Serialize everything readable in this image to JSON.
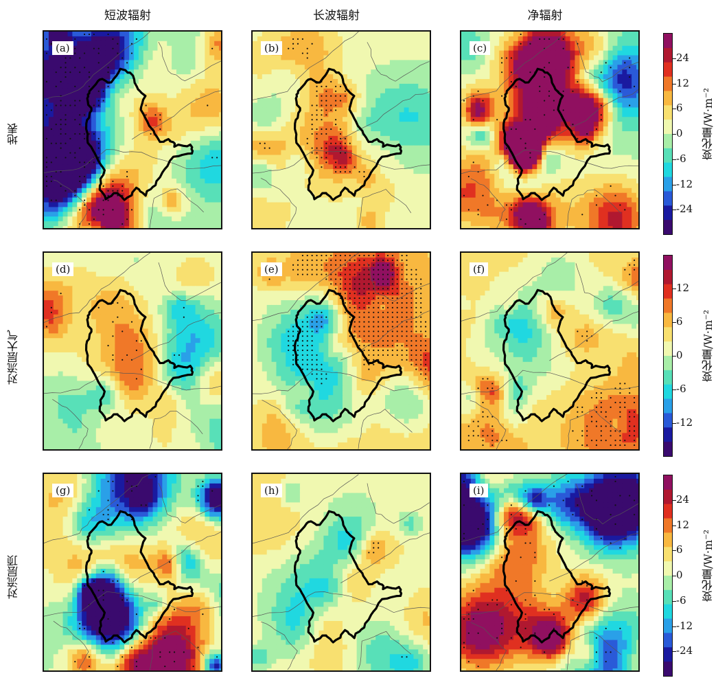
{
  "chart_data": {
    "type": "heatmap",
    "description_columns": [
      "短波辐射",
      "长波辐射",
      "净辐射"
    ],
    "rows": [
      "地表",
      "对流层大气",
      "对流层顶"
    ],
    "column_titles": [
      "短波辐射",
      "长波辐射",
      "净辐射"
    ],
    "row_titles": [
      "地表",
      "对流层大气",
      "对流层顶"
    ],
    "panels": [
      {
        "label": "(a)",
        "row": 0,
        "col": 0,
        "seed": 11,
        "amp": 1.0,
        "bias": 0.0,
        "dots": 0.12,
        "scale": "wide"
      },
      {
        "label": "(b)",
        "row": 0,
        "col": 1,
        "seed": 23,
        "amp": 0.35,
        "bias": 0.05,
        "dots": 0.25,
        "scale": "wide"
      },
      {
        "label": "(c)",
        "row": 0,
        "col": 2,
        "seed": 37,
        "amp": 1.0,
        "bias": 0.0,
        "dots": 0.05,
        "scale": "wide"
      },
      {
        "label": "(d)",
        "row": 1,
        "col": 0,
        "seed": 41,
        "amp": 0.35,
        "bias": 0.05,
        "dots": 0.04,
        "scale": "narrow"
      },
      {
        "label": "(e)",
        "row": 1,
        "col": 1,
        "seed": 53,
        "amp": 0.5,
        "bias": 0.25,
        "dots": 0.45,
        "scale": "narrow"
      },
      {
        "label": "(f)",
        "row": 1,
        "col": 2,
        "seed": 67,
        "amp": 0.45,
        "bias": 0.25,
        "dots": 0.25,
        "scale": "narrow"
      },
      {
        "label": "(g)",
        "row": 2,
        "col": 0,
        "seed": 71,
        "amp": 1.0,
        "bias": 0.0,
        "dots": 0.06,
        "scale": "wide"
      },
      {
        "label": "(h)",
        "row": 2,
        "col": 1,
        "seed": 83,
        "amp": 0.35,
        "bias": 0.1,
        "dots": 0.3,
        "scale": "wide"
      },
      {
        "label": "(i)",
        "row": 2,
        "col": 2,
        "seed": 97,
        "amp": 0.9,
        "bias": 0.05,
        "dots": 0.04,
        "scale": "wide"
      }
    ],
    "colorbars": [
      {
        "ticks": [
          "24",
          "12",
          "6",
          "0",
          "-6",
          "-12",
          "-24"
        ],
        "label": "变化量/W·m⁻²",
        "scale": "wide"
      },
      {
        "ticks": [
          "12",
          "6",
          "0",
          "-6",
          "-12"
        ],
        "label": "变化量/W·m⁻²",
        "scale": "narrow"
      },
      {
        "ticks": [
          "24",
          "12",
          "6",
          "0",
          "-6",
          "-12",
          "-24"
        ],
        "label": "变化量/W·m⁻²",
        "scale": "wide"
      }
    ],
    "colors": [
      "#3a0a6e",
      "#1a1aa0",
      "#2a5ad8",
      "#2aa0e8",
      "#20d8e0",
      "#58e0b8",
      "#a8eea8",
      "#f0f8b0",
      "#f8e070",
      "#f8b840",
      "#f07828",
      "#e03020",
      "#b01830",
      "#901060"
    ]
  }
}
